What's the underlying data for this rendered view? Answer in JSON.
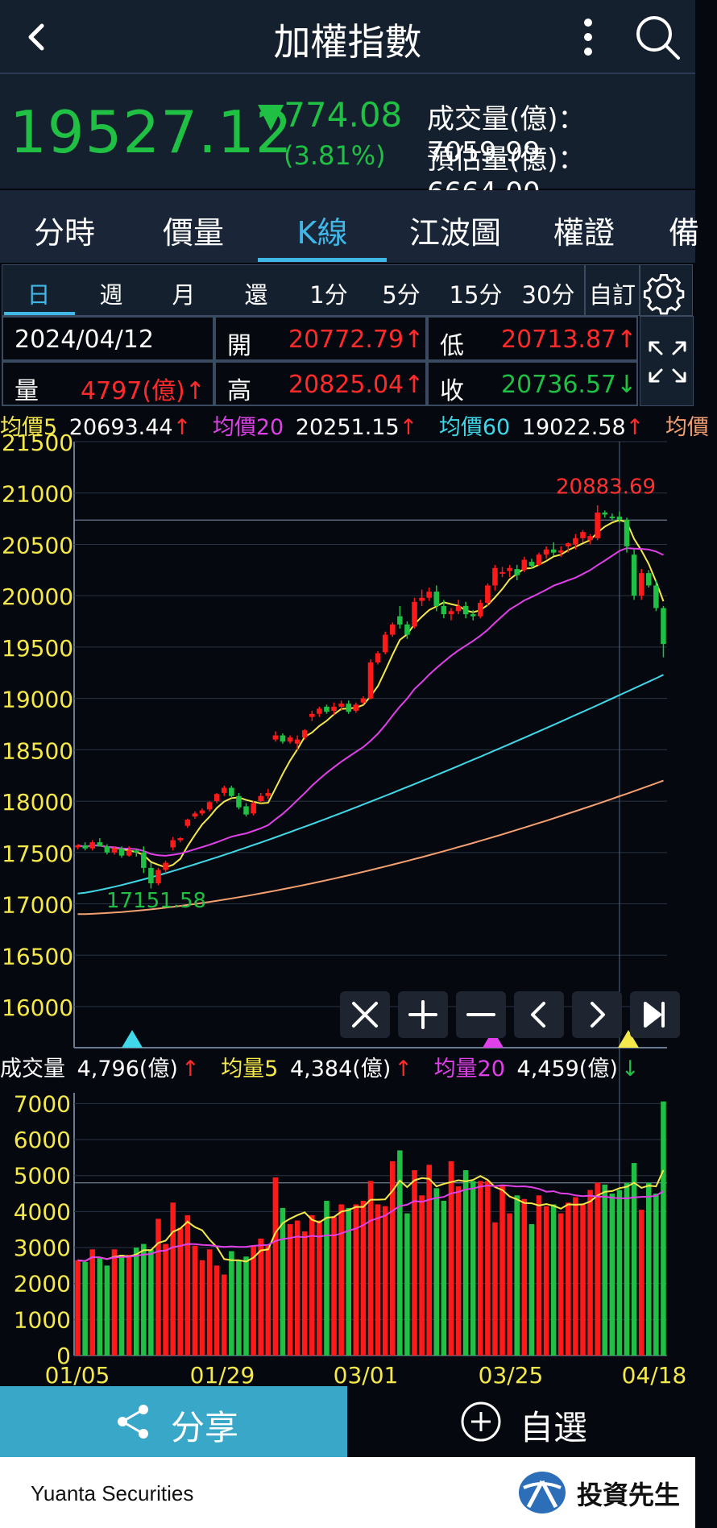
{
  "header": {
    "title": "加權指數"
  },
  "quote": {
    "price": "19527.12",
    "change": "▼774.08",
    "change_pct": "(3.81%)",
    "volume": "成交量(億)：7059.99",
    "estimate": "預估量(億)：6664.00"
  },
  "tabs": [
    {
      "label": "分時"
    },
    {
      "label": "價量"
    },
    {
      "label": "K線"
    },
    {
      "label": "江波圖"
    },
    {
      "label": "權證"
    },
    {
      "label": "備"
    }
  ],
  "periods": [
    {
      "label": "日"
    },
    {
      "label": "週"
    },
    {
      "label": "月"
    },
    {
      "label": "還"
    },
    {
      "label": "1分"
    },
    {
      "label": "5分"
    },
    {
      "label": "15分"
    },
    {
      "label": "30分"
    },
    {
      "label": "自訂"
    }
  ],
  "ohlc": {
    "date": "2024/04/12",
    "open_label": "開",
    "open": "20772.79↑",
    "low_label": "低",
    "low": "20713.87↑",
    "vol_label": "量",
    "vol": "4797(億)↑",
    "high_label": "高",
    "high": "20825.04↑",
    "close_label": "收",
    "close": "20736.57↓"
  },
  "ma_legend": [
    {
      "label": "均價5",
      "value": "20693.44",
      "arrow": "↑",
      "color": "#f5e84a"
    },
    {
      "label": "均價20",
      "value": "20251.15",
      "arrow": "↑",
      "color": "#e040e8"
    },
    {
      "label": "均價60",
      "value": "19022.58",
      "arrow": "↑",
      "color": "#40d8e8"
    },
    {
      "label": "均價",
      "value": "",
      "arrow": "",
      "color": "#f5a070"
    }
  ],
  "vol_legend": [
    {
      "label": "成交量",
      "value": "4,796(億)",
      "arrow": "↑",
      "color": "#ffffff"
    },
    {
      "label": "均量5",
      "value": "4,384(億)",
      "arrow": "↑",
      "color": "#f5e84a"
    },
    {
      "label": "均量20",
      "value": "4,459(億)",
      "arrow": "↓",
      "color": "#e040e8"
    }
  ],
  "actions": {
    "share": "分享",
    "favorite": "自選"
  },
  "footer": {
    "brand": "Yuanta Securities",
    "logo_text": "投資先生"
  },
  "colors": {
    "up": "#ff1a1a",
    "down": "#1fc043",
    "axis_text": "#f5e84a",
    "accent": "#3fb8e8"
  },
  "chart_data": {
    "type": "candlestick",
    "price_ticks": [
      21500,
      21000,
      20500,
      20000,
      19500,
      19000,
      18500,
      18000,
      17500,
      17000,
      16500,
      16000
    ],
    "price_range": [
      15600,
      21500
    ],
    "volume_ticks": [
      7000,
      6000,
      5000,
      4000,
      3000,
      2000,
      1000,
      0
    ],
    "volume_range": [
      0,
      7300
    ],
    "date_labels": [
      "01/05",
      "01/29",
      "03/01",
      "03/25",
      "04/18"
    ],
    "max_label": "20883.69",
    "min_label": "17151.58",
    "candles": [
      [
        17550,
        17580,
        17530,
        17570,
        2650
      ],
      [
        17570,
        17600,
        17520,
        17540,
        2600
      ],
      [
        17540,
        17620,
        17520,
        17600,
        2950
      ],
      [
        17600,
        17640,
        17580,
        17560,
        2700
      ],
      [
        17560,
        17580,
        17480,
        17500,
        2500
      ],
      [
        17500,
        17560,
        17480,
        17540,
        2950
      ],
      [
        17540,
        17560,
        17450,
        17470,
        2800
      ],
      [
        17470,
        17560,
        17460,
        17520,
        2800
      ],
      [
        17520,
        17540,
        17460,
        17500,
        3000
      ],
      [
        17500,
        17560,
        17300,
        17350,
        3100
      ],
      [
        17350,
        17400,
        17150,
        17200,
        2950
      ],
      [
        17200,
        17350,
        17180,
        17330,
        3800
      ],
      [
        17330,
        17420,
        17300,
        17400,
        3100
      ],
      [
        17550,
        17650,
        17520,
        17620,
        4250
      ],
      [
        17620,
        17650,
        17600,
        17640,
        3550
      ],
      [
        17760,
        17830,
        17740,
        17820,
        3900
      ],
      [
        17850,
        17900,
        17830,
        17880,
        3050
      ],
      [
        17880,
        17930,
        17860,
        17910,
        2650
      ],
      [
        17920,
        18000,
        17900,
        17990,
        2950
      ],
      [
        18000,
        18080,
        17980,
        18070,
        2500
      ],
      [
        18080,
        18150,
        18050,
        18130,
        2250
      ],
      [
        18130,
        18150,
        18030,
        18050,
        2900
      ],
      [
        18050,
        18080,
        17920,
        17940,
        2650
      ],
      [
        17950,
        17980,
        17850,
        17870,
        2750
      ],
      [
        17880,
        18000,
        17860,
        17980,
        3050
      ],
      [
        18000,
        18080,
        17980,
        18050,
        3250
      ],
      [
        18050,
        18120,
        18020,
        18080,
        3050
      ],
      [
        18600,
        18680,
        18580,
        18640,
        4950
      ],
      [
        18640,
        18660,
        18560,
        18580,
        4100
      ],
      [
        18580,
        18640,
        18560,
        18620,
        3650
      ],
      [
        18560,
        18640,
        18500,
        18600,
        3750
      ],
      [
        18620,
        18700,
        18600,
        18690,
        3450
      ],
      [
        18820,
        18880,
        18780,
        18850,
        3900
      ],
      [
        18850,
        18920,
        18820,
        18900,
        3750
      ],
      [
        18920,
        18940,
        18850,
        18870,
        4300
      ],
      [
        18880,
        18960,
        18840,
        18920,
        3850
      ],
      [
        18920,
        18980,
        18880,
        18950,
        4200
      ],
      [
        18950,
        18980,
        18850,
        18870,
        4100
      ],
      [
        18880,
        18960,
        18860,
        18940,
        4200
      ],
      [
        18960,
        19020,
        18940,
        19000,
        4300
      ],
      [
        19000,
        19380,
        18990,
        19350,
        4850
      ],
      [
        19350,
        19460,
        19330,
        19440,
        4200
      ],
      [
        19450,
        19650,
        19430,
        19620,
        4150
      ],
      [
        19620,
        19740,
        19600,
        19720,
        5400
      ],
      [
        19800,
        19900,
        19680,
        19720,
        5700
      ],
      [
        19720,
        19750,
        19580,
        19620,
        3950
      ],
      [
        19700,
        19980,
        19680,
        19940,
        5150
      ],
      [
        19950,
        20060,
        19900,
        19980,
        4450
      ],
      [
        19980,
        20080,
        19950,
        20040,
        5300
      ],
      [
        20040,
        20100,
        19850,
        19900,
        4650
      ],
      [
        19900,
        19960,
        19780,
        19820,
        4300
      ],
      [
        19820,
        19880,
        19760,
        19850,
        5400
      ],
      [
        19850,
        19960,
        19820,
        19900,
        4700
      ],
      [
        19900,
        19940,
        19780,
        19820,
        5150
      ],
      [
        19820,
        19860,
        19760,
        19800,
        4850
      ],
      [
        19800,
        19960,
        19780,
        19930,
        4850
      ],
      [
        19930,
        20120,
        19900,
        20100,
        4850
      ],
      [
        20100,
        20300,
        20050,
        20270,
        3700
      ],
      [
        20220,
        20280,
        20180,
        20230,
        4750
      ],
      [
        20240,
        20300,
        20180,
        20270,
        3950
      ],
      [
        20260,
        20300,
        20150,
        20200,
        4450
      ],
      [
        20250,
        20380,
        20230,
        20350,
        4350
      ],
      [
        20330,
        20360,
        20260,
        20290,
        3650
      ],
      [
        20300,
        20420,
        20290,
        20400,
        4450
      ],
      [
        20400,
        20480,
        20360,
        20450,
        4150
      ],
      [
        20450,
        20520,
        20390,
        20420,
        4200
      ],
      [
        20420,
        20480,
        20380,
        20440,
        3950
      ],
      [
        20480,
        20520,
        20420,
        20510,
        4250
      ],
      [
        20500,
        20600,
        20450,
        20560,
        4400
      ],
      [
        20560,
        20640,
        20520,
        20620,
        4200
      ],
      [
        20540,
        20600,
        20500,
        20580,
        4600
      ],
      [
        20560,
        20880,
        20540,
        20810,
        4800
      ],
      [
        20810,
        20830,
        20760,
        20790,
        4750
      ],
      [
        20770,
        20800,
        20730,
        20760,
        4500
      ],
      [
        20770,
        20820,
        20710,
        20740,
        4600
      ],
      [
        20740,
        20760,
        20420,
        20480,
        4800
      ],
      [
        20400,
        20450,
        19960,
        20000,
        5350
      ],
      [
        20000,
        20260,
        19960,
        20220,
        4050
      ],
      [
        20220,
        20250,
        20080,
        20100,
        4800
      ],
      [
        20100,
        20150,
        19850,
        19880,
        4500
      ],
      [
        19880,
        19900,
        19400,
        19530,
        7060
      ]
    ]
  }
}
